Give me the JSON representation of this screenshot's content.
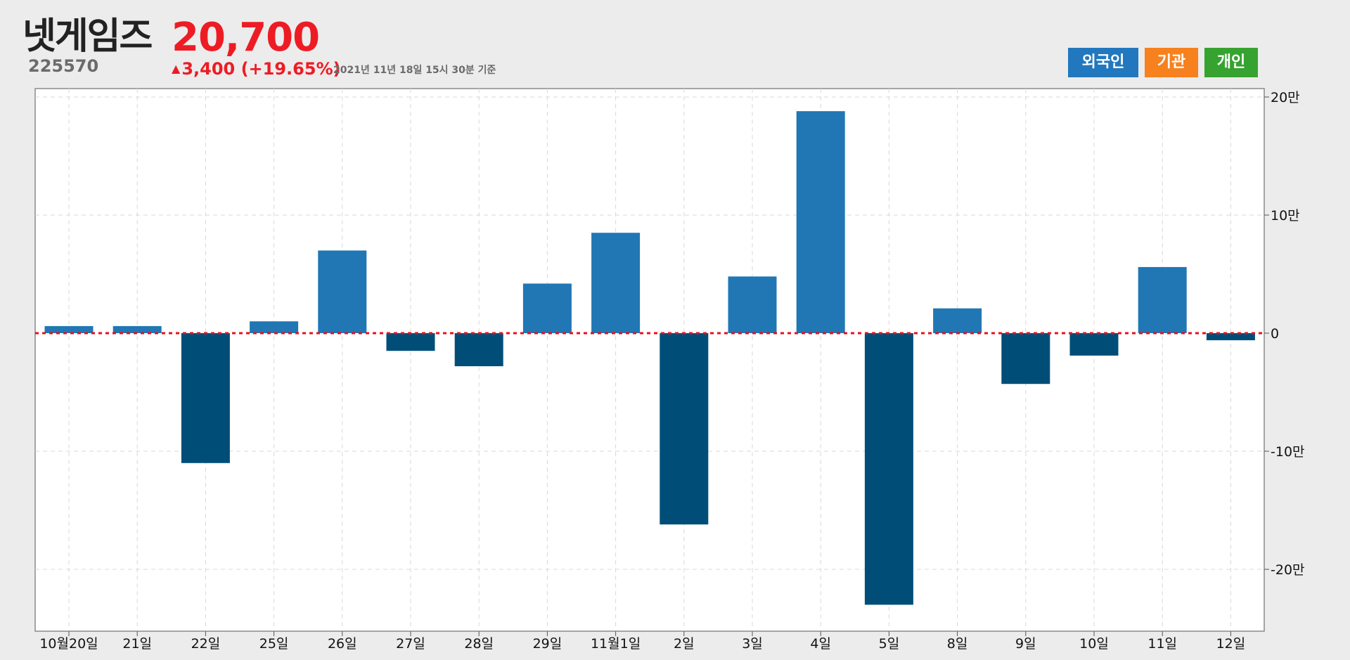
{
  "header": {
    "stock_name": "넷게임즈",
    "stock_code": "225570",
    "price": "20,700",
    "change_arrow": "▲",
    "change_text": "3,400 (+19.65%)",
    "timestamp": "2021년 11년 18일 15시 30분 기준"
  },
  "buttons": [
    {
      "label": "외국인",
      "color": "#2278be"
    },
    {
      "label": "기관",
      "color": "#f7811e"
    },
    {
      "label": "개인",
      "color": "#36a22f"
    }
  ],
  "chart_data": {
    "type": "bar",
    "categories": [
      "10월20일",
      "21일",
      "22일",
      "25일",
      "26일",
      "27일",
      "28일",
      "29일",
      "11월1일",
      "2일",
      "3일",
      "4일",
      "5일",
      "8일",
      "9일",
      "10일",
      "11일",
      "12일"
    ],
    "series": [
      {
        "values": [
          6000,
          6000,
          -110000,
          10000,
          70000,
          -15000,
          -28000,
          42000,
          85000,
          -162000,
          48000,
          188000,
          -230000,
          21000,
          -43000,
          -19000,
          56000,
          -6000
        ]
      }
    ],
    "y_ticks": [
      {
        "value": 200000,
        "label": "20만"
      },
      {
        "value": 100000,
        "label": "10만"
      },
      {
        "value": 0,
        "label": "0"
      },
      {
        "value": -100000,
        "label": "-10만"
      },
      {
        "value": -200000,
        "label": "-20만"
      }
    ],
    "ylim": [
      -252000,
      200000
    ],
    "colors": {
      "positive": "#2077b4",
      "negative": "#004e78",
      "zero_line": "#e8111f",
      "grid": "#d8d8d8"
    },
    "grid": true,
    "y_axis_position": "right",
    "title": "",
    "xlabel": "",
    "ylabel": ""
  }
}
